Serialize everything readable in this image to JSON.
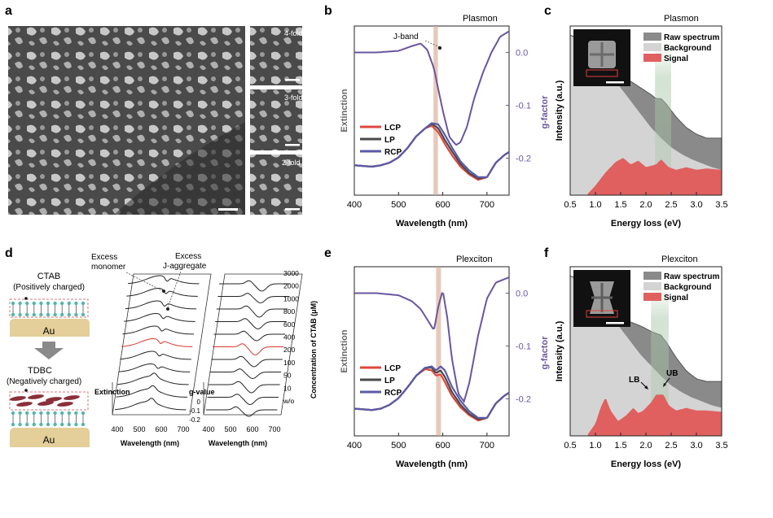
{
  "panels": {
    "a": {
      "letter": "a",
      "inset_labels": [
        "4-fold",
        "3-fold",
        "2-fold"
      ]
    },
    "b": {
      "letter": "b",
      "title": "Plasmon",
      "xlabel": "Wavelength (nm)",
      "ylabel_left": "Extinction",
      "ylabel_right": "g-factor",
      "annotation": "J-band",
      "x_ticks": [
        "400",
        "500",
        "600",
        "700"
      ],
      "g_ticks": [
        "0.0",
        "-0.1",
        "-0.2"
      ],
      "legend": [
        "LCP",
        "LP",
        "RCP"
      ]
    },
    "c": {
      "letter": "c",
      "title": "Plasmon",
      "xlabel": "Energy loss (eV)",
      "ylabel": "Intensity (a.u.)",
      "x_ticks": [
        "0.5",
        "1.0",
        "1.5",
        "2.0",
        "2.5",
        "3.0",
        "3.5"
      ],
      "legend": [
        "Raw spectrum",
        "Background",
        "Signal"
      ]
    },
    "d": {
      "letter": "d",
      "ctab_title": "CTAB",
      "ctab_sub": "(Positively charged)",
      "tdbc_title": "TDBC",
      "tdbc_sub": "(Negatively charged)",
      "au": "Au",
      "excess_monomer": "Excess\nmonomer",
      "excess_jagg": "Excess\nJ-aggregate",
      "extinction_label": "Extinction",
      "gvalue_label": "g-value",
      "gvalue_ticks": [
        "0",
        "-0.1",
        "-0.2"
      ],
      "x_ticks": [
        "400",
        "500",
        "600",
        "700"
      ],
      "xlabel": "Wavelength (nm)",
      "concentration_label": "Concentration of CTAB (μM)",
      "concentrations": [
        "3000",
        "2000",
        "1000",
        "800",
        "600",
        "400",
        "200",
        "100",
        "50",
        "10",
        "w/o"
      ]
    },
    "e": {
      "letter": "e",
      "title": "Plexciton",
      "xlabel": "Wavelength (nm)",
      "ylabel_left": "Extinction",
      "ylabel_right": "g-factor",
      "x_ticks": [
        "400",
        "500",
        "600",
        "700"
      ],
      "g_ticks": [
        "0.0",
        "-0.1",
        "-0.2"
      ],
      "legend": [
        "LCP",
        "LP",
        "RCP"
      ]
    },
    "f": {
      "letter": "f",
      "title": "Plexciton",
      "xlabel": "Energy loss (eV)",
      "ylabel": "Intensity (a.u.)",
      "x_ticks": [
        "0.5",
        "1.0",
        "1.5",
        "2.0",
        "2.5",
        "3.0",
        "3.5"
      ],
      "legend": [
        "Raw spectrum",
        "Background",
        "Signal"
      ],
      "lb": "LB",
      "ub": "UB"
    }
  },
  "colors": {
    "lcp": "#e0473f",
    "lp": "#4a4a4a",
    "rcp": "#5b5aa6",
    "g": "#6a55a0",
    "band": "#d9a58a",
    "raw": "#8a8a8a",
    "background": "#d4d4d4",
    "signal": "#e06060"
  },
  "chart_data": [
    {
      "type": "line",
      "panel": "b",
      "xlim": [
        400,
        750
      ],
      "ylim_right": [
        -0.27,
        0.05
      ],
      "band_x": [
        579,
        589
      ],
      "series": [
        {
          "name": "LCP",
          "x": [
            400,
            420,
            440,
            460,
            480,
            500,
            520,
            540,
            560,
            575,
            590,
            605,
            620,
            640,
            660,
            680,
            700,
            720,
            740,
            750
          ],
          "values": [
            0.14,
            0.135,
            0.13,
            0.14,
            0.16,
            0.2,
            0.27,
            0.36,
            0.42,
            0.44,
            0.39,
            0.3,
            0.22,
            0.13,
            0.07,
            0.03,
            0.05,
            0.16,
            0.22,
            0.24
          ]
        },
        {
          "name": "LP",
          "x": [
            400,
            420,
            440,
            460,
            480,
            500,
            520,
            540,
            560,
            575,
            590,
            605,
            620,
            640,
            660,
            680,
            700,
            720,
            740,
            750
          ],
          "values": [
            0.14,
            0.135,
            0.13,
            0.14,
            0.16,
            0.2,
            0.27,
            0.36,
            0.42,
            0.455,
            0.42,
            0.33,
            0.25,
            0.15,
            0.08,
            0.04,
            0.05,
            0.16,
            0.22,
            0.24
          ]
        },
        {
          "name": "RCP",
          "x": [
            400,
            420,
            440,
            460,
            480,
            500,
            520,
            540,
            560,
            575,
            590,
            605,
            620,
            640,
            660,
            680,
            700,
            720,
            740,
            750
          ],
          "values": [
            0.14,
            0.135,
            0.13,
            0.14,
            0.16,
            0.2,
            0.27,
            0.36,
            0.42,
            0.46,
            0.45,
            0.37,
            0.28,
            0.17,
            0.1,
            0.05,
            0.05,
            0.16,
            0.22,
            0.24
          ]
        },
        {
          "name": "g-factor",
          "x": [
            400,
            450,
            500,
            530,
            550,
            565,
            580,
            600,
            615,
            630,
            640,
            655,
            670,
            690,
            710,
            730,
            750
          ],
          "values": [
            0,
            0,
            0.003,
            0.012,
            0.017,
            0.005,
            -0.03,
            -0.11,
            -0.16,
            -0.175,
            -0.17,
            -0.14,
            -0.09,
            -0.04,
            0,
            0.03,
            0.04
          ]
        }
      ]
    },
    {
      "type": "area",
      "panel": "c",
      "xlim": [
        0.5,
        3.5
      ],
      "band_x": [
        2.18,
        2.5
      ],
      "series": [
        {
          "name": "Raw spectrum",
          "x": [
            0.5,
            0.9,
            1.1,
            1.3,
            1.5,
            1.7,
            1.9,
            2.1,
            2.2,
            2.3,
            2.4,
            2.6,
            2.8,
            3.0,
            3.2,
            3.5
          ],
          "values": [
            1.2,
            1.15,
            1.05,
            0.95,
            0.88,
            0.85,
            0.8,
            0.75,
            0.72,
            0.72,
            0.68,
            0.58,
            0.5,
            0.45,
            0.42,
            0.42
          ]
        },
        {
          "name": "Background",
          "x": [
            0.5,
            0.9,
            1.1,
            1.3,
            1.5,
            1.7,
            1.9,
            2.1,
            2.3,
            2.5,
            2.7,
            2.9,
            3.1,
            3.3,
            3.5
          ],
          "values": [
            1.2,
            1.1,
            1.0,
            0.9,
            0.8,
            0.7,
            0.6,
            0.5,
            0.42,
            0.35,
            0.3,
            0.26,
            0.23,
            0.2,
            0.18
          ]
        },
        {
          "name": "Signal",
          "x": [
            0.85,
            1.0,
            1.2,
            1.4,
            1.55,
            1.7,
            1.85,
            2.0,
            2.2,
            2.3,
            2.45,
            2.6,
            2.8,
            3.0,
            3.2,
            3.5
          ],
          "values": [
            0,
            0.06,
            0.16,
            0.24,
            0.27,
            0.22,
            0.25,
            0.2,
            0.22,
            0.26,
            0.2,
            0.18,
            0.2,
            0.18,
            0.19,
            0.18
          ]
        }
      ]
    },
    {
      "type": "line",
      "panel": "e",
      "xlim": [
        400,
        750
      ],
      "ylim_right": [
        -0.27,
        0.05
      ],
      "band_x": [
        585,
        596
      ],
      "series": [
        {
          "name": "LCP",
          "x": [
            400,
            420,
            440,
            460,
            480,
            500,
            520,
            540,
            560,
            575,
            585,
            595,
            605,
            620,
            640,
            660,
            680,
            700,
            720,
            740,
            750
          ],
          "values": [
            0.12,
            0.115,
            0.11,
            0.12,
            0.15,
            0.2,
            0.28,
            0.37,
            0.42,
            0.41,
            0.37,
            0.38,
            0.32,
            0.22,
            0.13,
            0.07,
            0.03,
            0.05,
            0.16,
            0.22,
            0.24
          ]
        },
        {
          "name": "LP",
          "x": [
            400,
            420,
            440,
            460,
            480,
            500,
            520,
            540,
            560,
            575,
            585,
            595,
            605,
            620,
            640,
            660,
            680,
            700,
            720,
            740,
            750
          ],
          "values": [
            0.12,
            0.115,
            0.11,
            0.12,
            0.15,
            0.2,
            0.28,
            0.37,
            0.43,
            0.43,
            0.39,
            0.41,
            0.36,
            0.25,
            0.15,
            0.08,
            0.04,
            0.05,
            0.16,
            0.22,
            0.24
          ]
        },
        {
          "name": "RCP",
          "x": [
            400,
            420,
            440,
            460,
            480,
            500,
            520,
            540,
            560,
            575,
            585,
            595,
            605,
            620,
            640,
            660,
            680,
            700,
            720,
            740,
            750
          ],
          "values": [
            0.12,
            0.115,
            0.11,
            0.12,
            0.15,
            0.2,
            0.28,
            0.37,
            0.43,
            0.44,
            0.41,
            0.44,
            0.41,
            0.29,
            0.18,
            0.1,
            0.05,
            0.05,
            0.16,
            0.22,
            0.24
          ]
        },
        {
          "name": "g-factor",
          "x": [
            400,
            450,
            500,
            530,
            550,
            565,
            580,
            590,
            600,
            610,
            620,
            635,
            648,
            660,
            680,
            700,
            720,
            750
          ],
          "values": [
            0,
            0,
            -0.004,
            -0.015,
            -0.03,
            -0.05,
            -0.07,
            -0.025,
            0.005,
            -0.045,
            -0.12,
            -0.19,
            -0.205,
            -0.17,
            -0.08,
            -0.01,
            0.02,
            0.03
          ]
        }
      ]
    },
    {
      "type": "area",
      "panel": "f",
      "xlim": [
        0.5,
        3.5
      ],
      "band_x": [
        2.1,
        2.45
      ],
      "series": [
        {
          "name": "Raw spectrum",
          "x": [
            0.5,
            0.9,
            1.1,
            1.3,
            1.5,
            1.7,
            1.9,
            2.1,
            2.3,
            2.4,
            2.6,
            2.8,
            3.0,
            3.2,
            3.5
          ],
          "values": [
            1.2,
            1.15,
            1.05,
            0.95,
            0.88,
            0.85,
            0.82,
            0.78,
            0.75,
            0.7,
            0.58,
            0.48,
            0.42,
            0.4,
            0.4
          ]
        },
        {
          "name": "Background",
          "x": [
            0.5,
            0.9,
            1.1,
            1.3,
            1.5,
            1.7,
            1.9,
            2.1,
            2.3,
            2.5,
            2.7,
            2.9,
            3.1,
            3.3,
            3.5
          ],
          "values": [
            1.2,
            1.1,
            1.0,
            0.9,
            0.8,
            0.7,
            0.6,
            0.52,
            0.44,
            0.37,
            0.32,
            0.28,
            0.25,
            0.22,
            0.2
          ]
        },
        {
          "name": "Signal",
          "x": [
            0.85,
            1.0,
            1.1,
            1.2,
            1.3,
            1.45,
            1.6,
            1.75,
            1.85,
            1.95,
            2.1,
            2.2,
            2.35,
            2.45,
            2.6,
            2.8,
            3.0,
            3.2,
            3.5
          ],
          "values": [
            0,
            0.08,
            0.2,
            0.28,
            0.18,
            0.1,
            0.14,
            0.2,
            0.16,
            0.18,
            0.24,
            0.3,
            0.3,
            0.22,
            0.18,
            0.2,
            0.18,
            0.18,
            0.17
          ]
        }
      ]
    },
    {
      "type": "line",
      "panel": "d",
      "note": "stacked waterfall spectra",
      "series_names": [
        "3000",
        "2000",
        "1000",
        "800",
        "600",
        "400",
        "200",
        "100",
        "50",
        "10",
        "w/o"
      ]
    }
  ]
}
